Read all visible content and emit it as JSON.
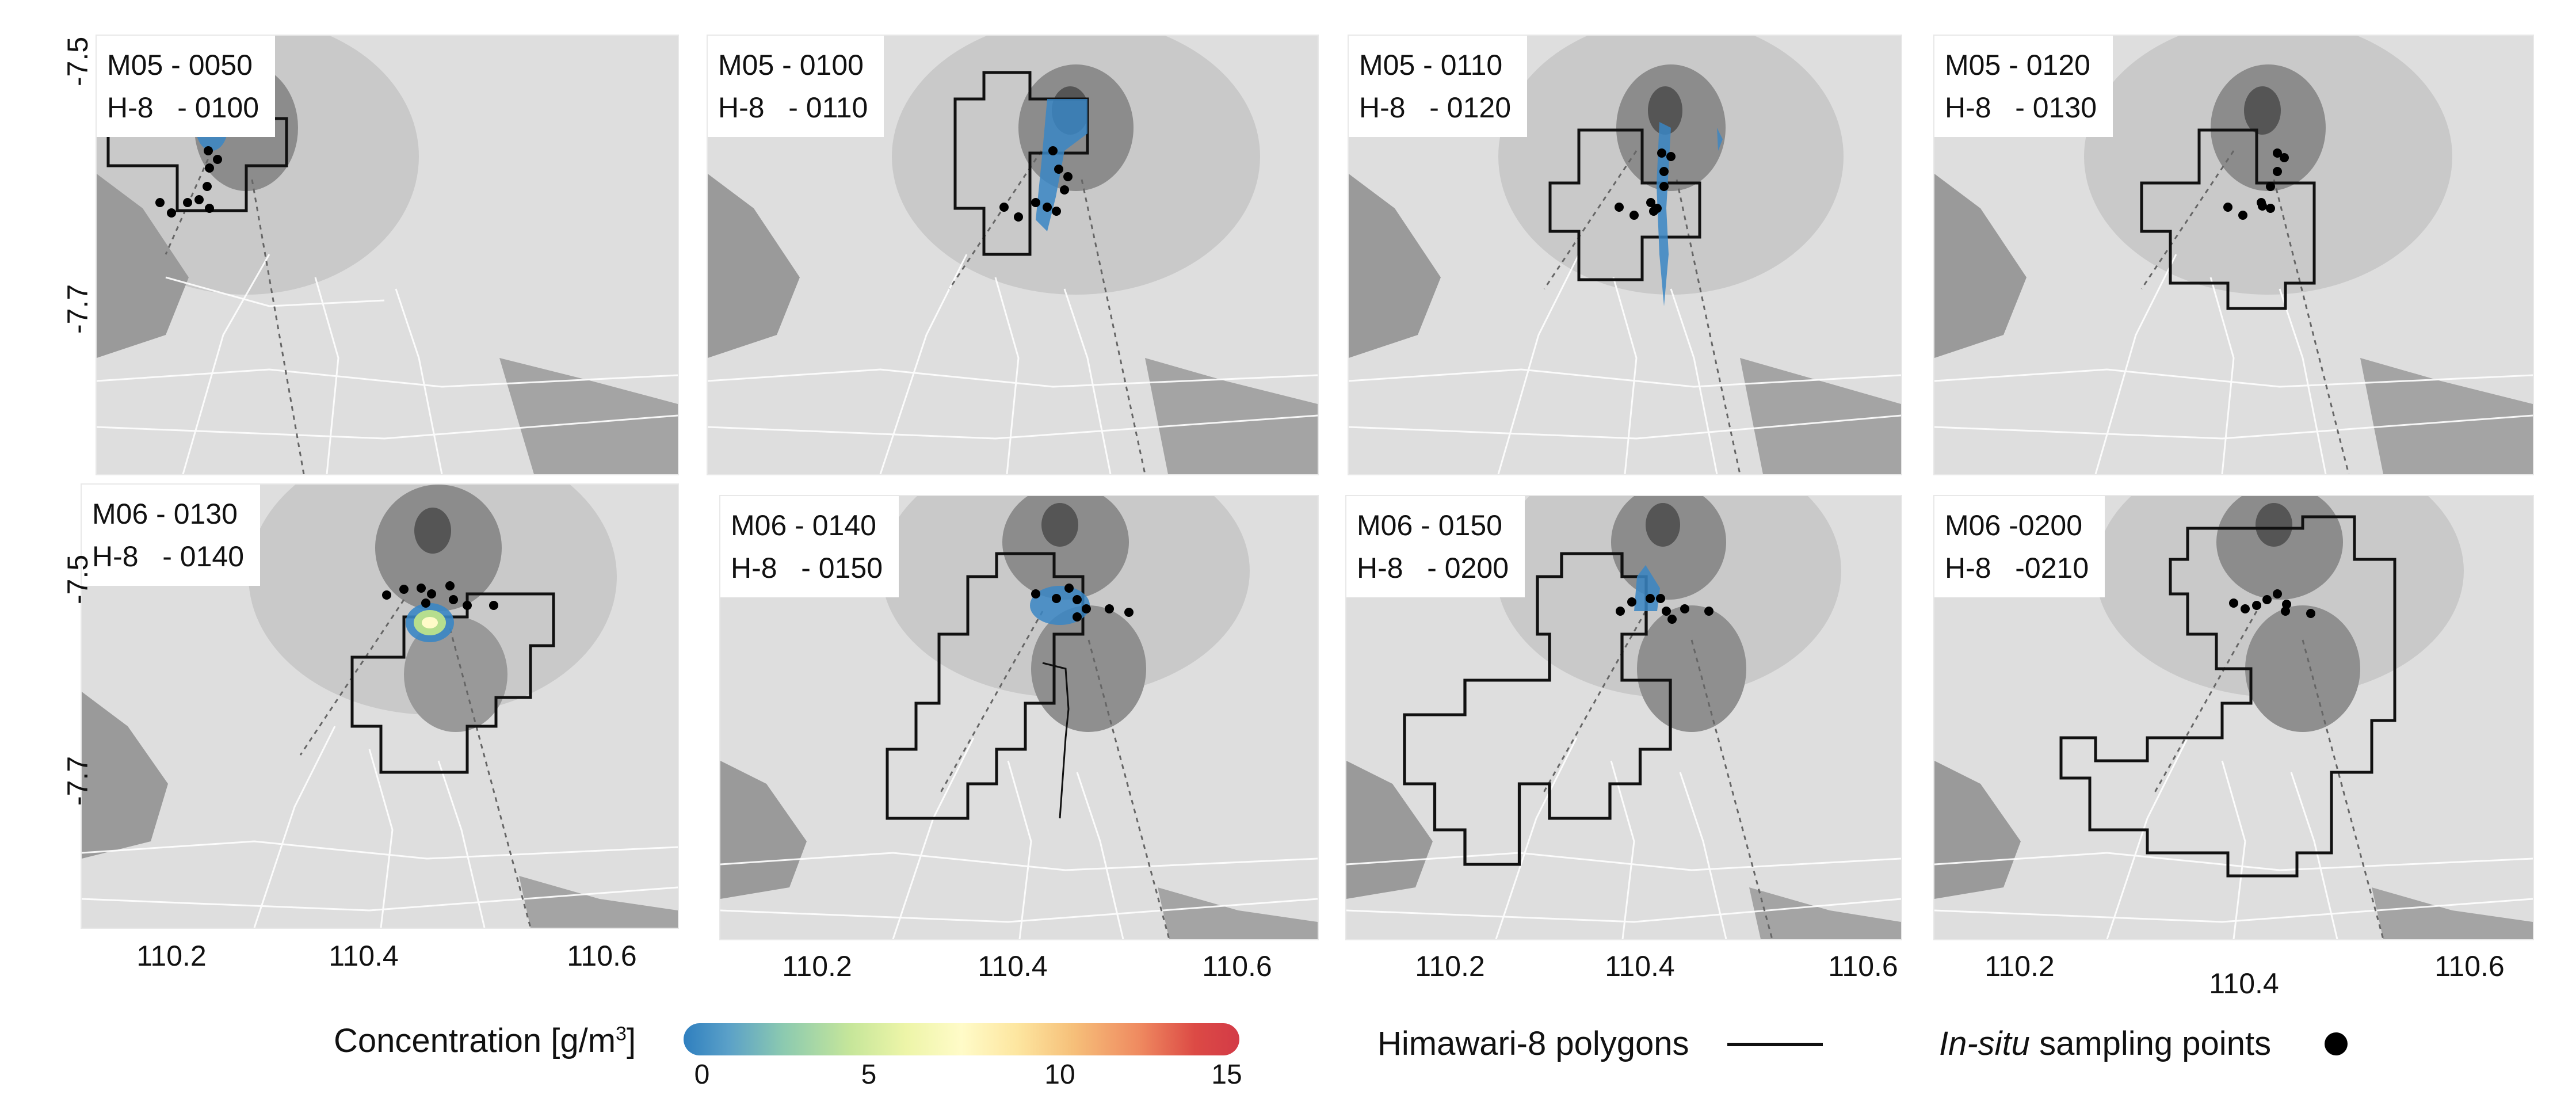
{
  "panels": [
    {
      "line1": "M05 - 0050",
      "line2": "H-8   - 0100"
    },
    {
      "line1": "M05 - 0100",
      "line2": "H-8   - 0110"
    },
    {
      "line1": "M05 - 0110",
      "line2": "H-8   - 0120"
    },
    {
      "line1": "M05 - 0120",
      "line2": "H-8   - 0130"
    },
    {
      "line1": "M06 - 0130",
      "line2": "H-8   - 0140"
    },
    {
      "line1": "M06 - 0140",
      "line2": "H-8   - 0150"
    },
    {
      "line1": "M06 - 0150",
      "line2": "H-8   - 0200"
    },
    {
      "line1": "M06 -0200",
      "line2": "H-8   -0210"
    }
  ],
  "axes": {
    "y_ticks": [
      "-7.5",
      "-7.7"
    ],
    "x_ticks": [
      "110.2",
      "110.4",
      "110.6"
    ]
  },
  "legend": {
    "concentration_label": "Concentration [g/m",
    "concentration_sup": "3",
    "concentration_close": "]",
    "scale_ticks": [
      "0",
      "5",
      "10",
      "15"
    ],
    "polygon_label": "Himawari-8 polygons",
    "sampling_label_italic": "In-situ",
    "sampling_label_rest": " sampling points"
  },
  "colors": {
    "map_background": "#dcdcdc",
    "polygon_line": "#111111",
    "sampling_points": "#000000",
    "ash_low": "#3a86c4",
    "ash_high": "#d33b47"
  }
}
